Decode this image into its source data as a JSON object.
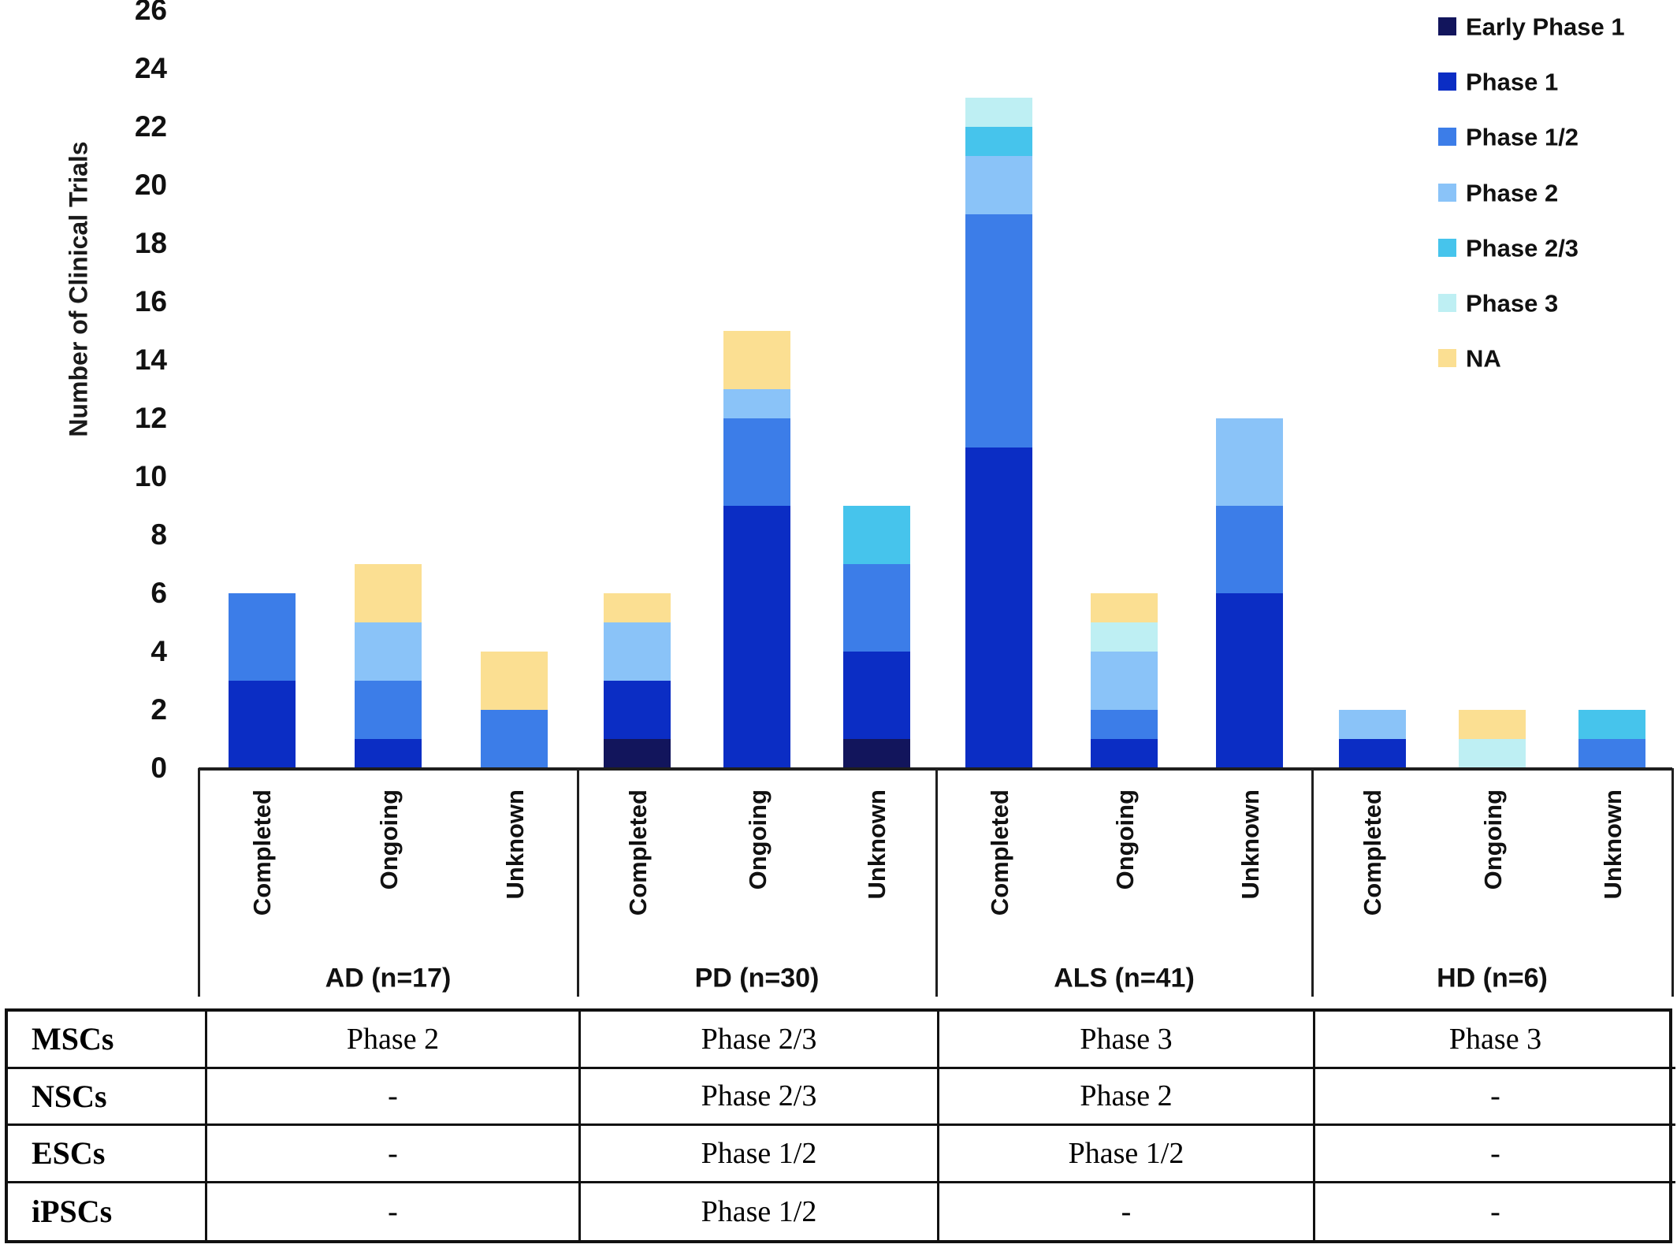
{
  "y_axis": {
    "title": "Number of Clinical Trials",
    "min": 0,
    "max": 26,
    "step": 2
  },
  "series": [
    {
      "key": "early_phase_1",
      "label": "Early Phase 1",
      "color": "#12155C"
    },
    {
      "key": "phase_1",
      "label": "Phase 1",
      "color": "#0B2DC4"
    },
    {
      "key": "phase_1_2",
      "label": "Phase 1/2",
      "color": "#3C7DE8"
    },
    {
      "key": "phase_2",
      "label": "Phase 2",
      "color": "#8AC3F8"
    },
    {
      "key": "phase_2_3",
      "label": "Phase 2/3",
      "color": "#46C4EC"
    },
    {
      "key": "phase_3",
      "label": "Phase 3",
      "color": "#BEEFF3"
    },
    {
      "key": "na",
      "label": "NA",
      "color": "#FBDF92"
    }
  ],
  "colors": {
    "axis_line": "#1f1f1f",
    "table_border": "#111111",
    "text": "#111111"
  },
  "chart_data": {
    "type": "bar",
    "stacked": true,
    "ylabel": "Number of Clinical Trials",
    "ylim": [
      0,
      26
    ],
    "grid": false,
    "legend_position": "top-right",
    "statuses": [
      "Completed",
      "Ongoing",
      "Unknown"
    ],
    "groups": [
      {
        "label": "AD (n=17)",
        "bars": [
          {
            "status": "Completed",
            "total": 6,
            "segments": [
              [
                "phase_1",
                3
              ],
              [
                "phase_1_2",
                3
              ]
            ]
          },
          {
            "status": "Ongoing",
            "total": 7,
            "segments": [
              [
                "phase_1",
                1
              ],
              [
                "phase_1_2",
                2
              ],
              [
                "phase_2",
                2
              ],
              [
                "na",
                2
              ]
            ]
          },
          {
            "status": "Unknown",
            "total": 4,
            "segments": [
              [
                "phase_1_2",
                2
              ],
              [
                "na",
                2
              ]
            ]
          }
        ]
      },
      {
        "label": "PD (n=30)",
        "bars": [
          {
            "status": "Completed",
            "total": 6,
            "segments": [
              [
                "early_phase_1",
                1
              ],
              [
                "phase_1",
                2
              ],
              [
                "phase_2",
                2
              ],
              [
                "na",
                1
              ]
            ]
          },
          {
            "status": "Ongoing",
            "total": 15,
            "segments": [
              [
                "phase_1",
                9
              ],
              [
                "phase_1_2",
                3
              ],
              [
                "phase_2",
                1
              ],
              [
                "na",
                2
              ]
            ]
          },
          {
            "status": "Unknown",
            "total": 9,
            "segments": [
              [
                "early_phase_1",
                1
              ],
              [
                "phase_1",
                3
              ],
              [
                "phase_1_2",
                3
              ],
              [
                "phase_2_3",
                2
              ]
            ]
          }
        ]
      },
      {
        "label": "ALS (n=41)",
        "bars": [
          {
            "status": "Completed",
            "total": 23,
            "segments": [
              [
                "phase_1",
                11
              ],
              [
                "phase_1_2",
                8
              ],
              [
                "phase_2",
                2
              ],
              [
                "phase_2_3",
                1
              ],
              [
                "phase_3",
                1
              ]
            ]
          },
          {
            "status": "Ongoing",
            "total": 6,
            "segments": [
              [
                "phase_1",
                1
              ],
              [
                "phase_1_2",
                1
              ],
              [
                "phase_2",
                2
              ],
              [
                "phase_3",
                1
              ],
              [
                "na",
                1
              ]
            ]
          },
          {
            "status": "Unknown",
            "total": 12,
            "segments": [
              [
                "phase_1",
                6
              ],
              [
                "phase_1_2",
                3
              ],
              [
                "phase_2",
                3
              ]
            ]
          }
        ]
      },
      {
        "label": "HD (n=6)",
        "bars": [
          {
            "status": "Completed",
            "total": 2,
            "segments": [
              [
                "phase_1",
                1
              ],
              [
                "phase_2",
                1
              ]
            ]
          },
          {
            "status": "Ongoing",
            "total": 2,
            "segments": [
              [
                "phase_3",
                1
              ],
              [
                "na",
                1
              ]
            ]
          },
          {
            "status": "Unknown",
            "total": 2,
            "segments": [
              [
                "phase_1_2",
                1
              ],
              [
                "phase_2_3",
                1
              ]
            ]
          }
        ]
      }
    ]
  },
  "table": {
    "rows": [
      {
        "header": "MSCs",
        "cells": [
          "Phase 2",
          "Phase 2/3",
          "Phase 3",
          "Phase 3"
        ]
      },
      {
        "header": "NSCs",
        "cells": [
          "-",
          "Phase 2/3",
          "Phase 2",
          "-"
        ]
      },
      {
        "header": "ESCs",
        "cells": [
          "-",
          "Phase 1/2",
          "Phase 1/2",
          "-"
        ]
      },
      {
        "header": "iPSCs",
        "cells": [
          "-",
          "Phase 1/2",
          "-",
          "-"
        ]
      }
    ]
  }
}
